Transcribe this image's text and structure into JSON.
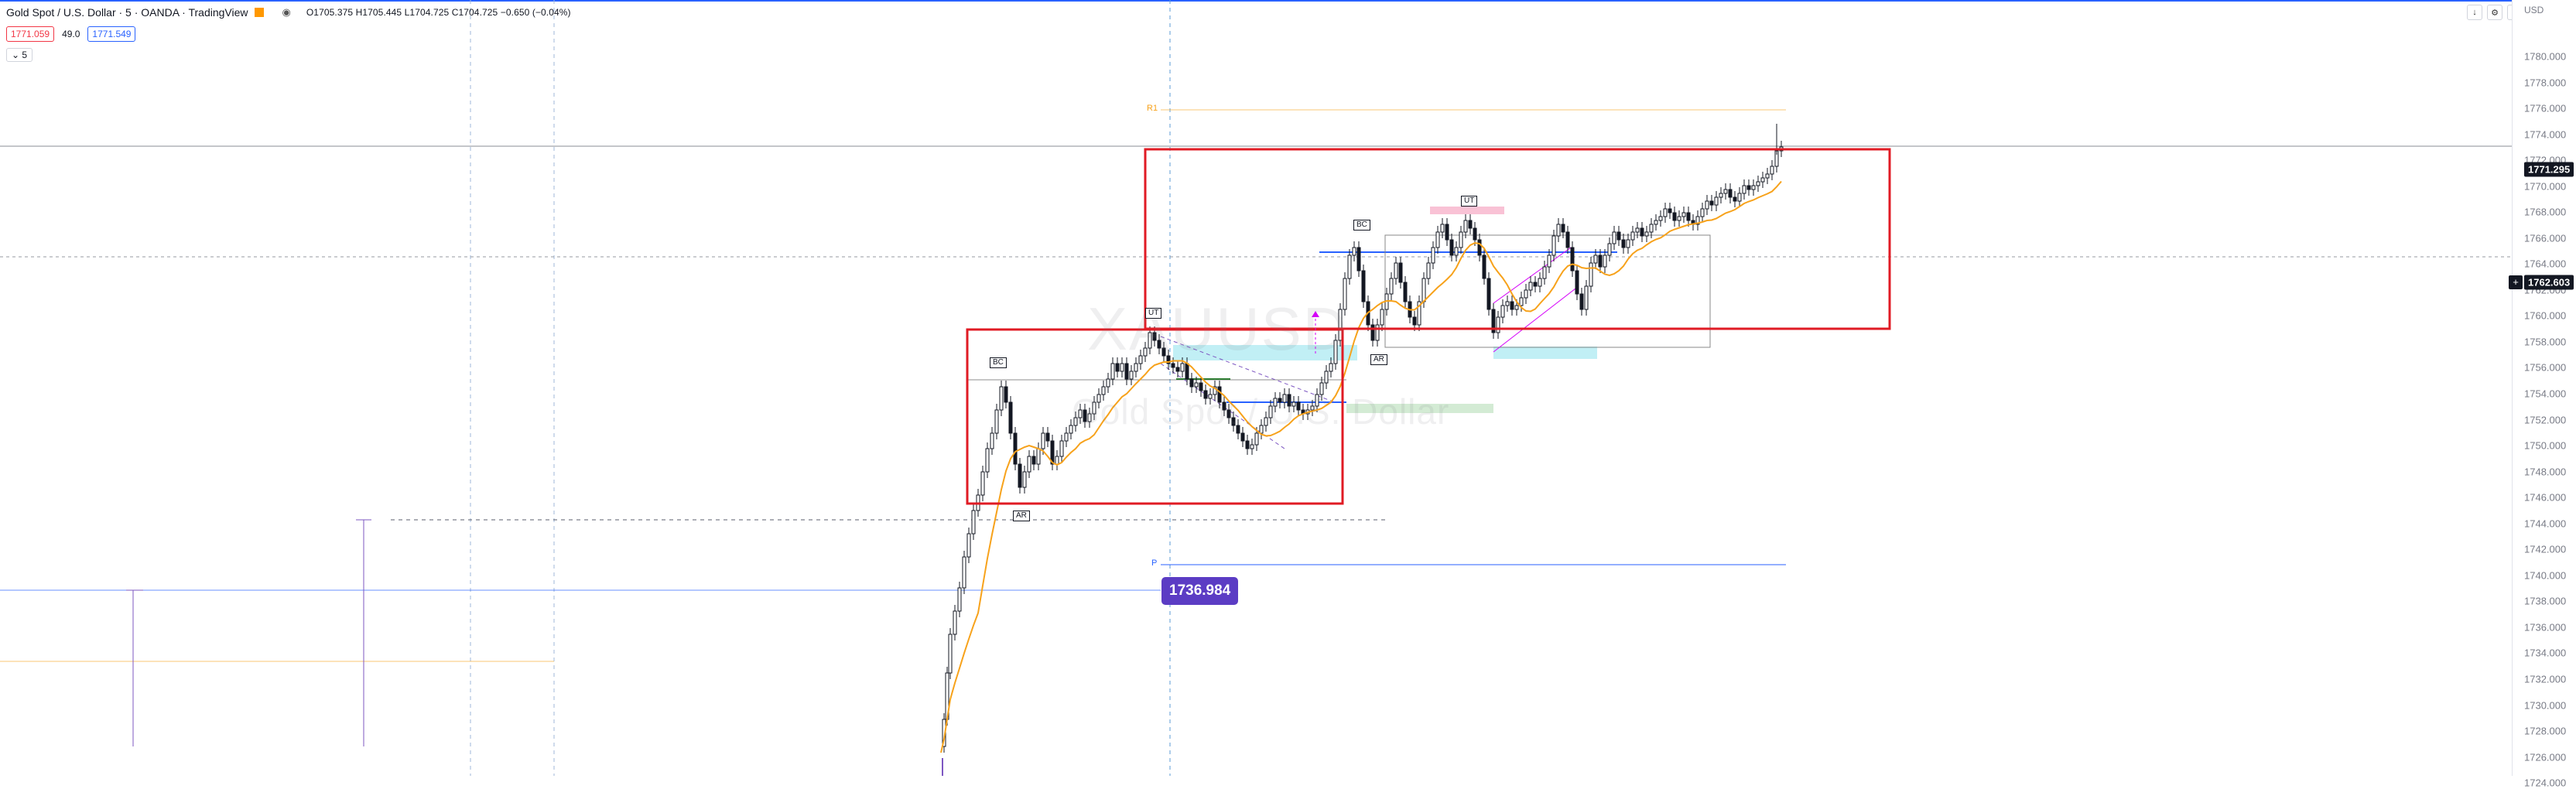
{
  "legend": {
    "title": "Gold Spot / U.S. Dollar · 5 · OANDA · TradingView",
    "ohlc": "O1705.375  H1705.445  L1704.725  C1704.725  −0.650 (−0.04%)"
  },
  "quote": {
    "sell": "1771.059",
    "spread": "49.0",
    "buy": "1771.549"
  },
  "indicator_toggle": "5",
  "watermark": {
    "symbol": "XAUUSD",
    "description": "Gold Spot / U.S. Dollar"
  },
  "axis": {
    "currency": "USD",
    "ticks": [
      "1780.000",
      "1778.000",
      "1776.000",
      "1774.000",
      "1772.000",
      "1770.000",
      "1768.000",
      "1766.000",
      "1764.000",
      "1762.000",
      "1760.000",
      "1758.000",
      "1756.000",
      "1754.000",
      "1752.000",
      "1750.000",
      "1748.000",
      "1746.000",
      "1744.000",
      "1742.000",
      "1740.000",
      "1738.000",
      "1736.000",
      "1734.000",
      "1732.000",
      "1730.000",
      "1728.000",
      "1726.000",
      "1724.000"
    ],
    "current_price": "1771.295",
    "crosshair_price": "1762.603"
  },
  "callout_price": "1736.984",
  "wyckoff_labels": {
    "bc_1": "BC",
    "ar_1": "AR",
    "ut_1": "UT",
    "bc_2": "BC",
    "ar_2": "AR",
    "ut_2": "UT"
  },
  "pivots": {
    "r1": "R1",
    "p": "P"
  },
  "icons": {
    "flag": "flag-icon",
    "eye": "eye-icon",
    "down_arrow": "down-arrow-icon",
    "settings": "settings-icon",
    "fullscreen": "fullscreen-icon",
    "crosshair": "crosshair-icon"
  },
  "colors": {
    "accent": "#2962ff",
    "box": "#e01b24",
    "ma": "#f7a21b",
    "callout": "#5b3cc4",
    "teal_zone": "#b2ebf2",
    "pink_zone": "#f8bbd0",
    "green_zone": "#c8e6c9"
  }
}
